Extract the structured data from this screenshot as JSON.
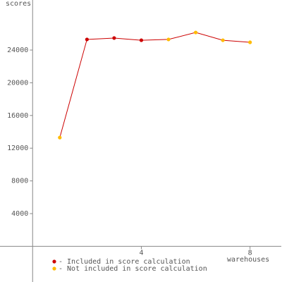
{
  "chart_data": {
    "type": "line",
    "y_label": "scores",
    "x_label": "warehouses",
    "x": [
      1,
      2,
      3,
      4,
      5,
      6,
      7,
      8
    ],
    "values": [
      13300,
      25300,
      25470,
      25200,
      25300,
      26150,
      25200,
      24950
    ],
    "included": [
      false,
      true,
      true,
      true,
      false,
      false,
      false,
      false
    ],
    "line_color": "#cc0000",
    "legend": [
      {
        "name": "- Included in score calculation",
        "color": "#cc0000"
      },
      {
        "name": "- Not included in score calculation",
        "color": "#ffbb00"
      }
    ],
    "xlim": [
      -1.2,
      9.15
    ],
    "ylim": [
      -4000,
      30000
    ],
    "xticks": [
      4,
      8
    ],
    "yticks": [
      4000,
      8000,
      12000,
      16000,
      20000,
      24000
    ]
  }
}
